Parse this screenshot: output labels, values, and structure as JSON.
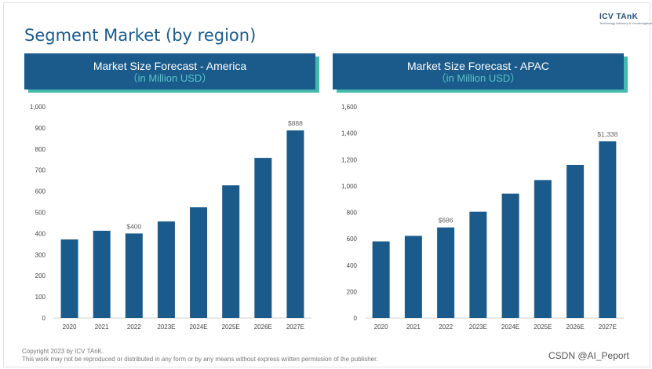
{
  "slide": {
    "title": "Segment Market (by region)",
    "logo": {
      "name": "ICV TAnK",
      "tagline": "Technology Advisory & Knowledgebase"
    },
    "footer": {
      "copyright": "Copyright 2023 by ICV TAnK.",
      "notice": "This work may not be reproduced or distributed in any form or by any means without express written permission of the publisher."
    },
    "watermark": "CSDN @AI_Peport"
  },
  "colors": {
    "bar": "#1b5b8c",
    "header": "#1b5b8c",
    "accent": "#45b9ae",
    "subtitle": "#58c4c6"
  },
  "chart_data": [
    {
      "type": "bar",
      "title": "Market Size Forecast - America",
      "subtitle": "（in Million USD）",
      "categories": [
        "2020",
        "2021",
        "2022",
        "2023E",
        "2024E",
        "2025E",
        "2026E",
        "2027E"
      ],
      "values": [
        372,
        413,
        400,
        457,
        524,
        628,
        758,
        888
      ],
      "ylim": [
        0,
        1000
      ],
      "yticks": [
        "0",
        "100",
        "200",
        "300",
        "400",
        "500",
        "600",
        "700",
        "800",
        "900",
        "1,000"
      ],
      "data_labels": [
        {
          "index": 2,
          "text": "$400"
        },
        {
          "index": 7,
          "text": "$888"
        }
      ],
      "grid": false,
      "legend": "none"
    },
    {
      "type": "bar",
      "title": "Market Size Forecast - APAC",
      "subtitle": "（in Million USD）",
      "categories": [
        "2020",
        "2021",
        "2022",
        "2023E",
        "2024E",
        "2025E",
        "2026E",
        "2027E"
      ],
      "values": [
        580,
        622,
        686,
        805,
        942,
        1045,
        1160,
        1338
      ],
      "ylim": [
        0,
        1600
      ],
      "yticks": [
        "0",
        "200",
        "400",
        "600",
        "800",
        "1,000",
        "1,200",
        "1,400",
        "1,600"
      ],
      "data_labels": [
        {
          "index": 2,
          "text": "$686"
        },
        {
          "index": 7,
          "text": "$1,338"
        }
      ],
      "grid": false,
      "legend": "none"
    }
  ]
}
